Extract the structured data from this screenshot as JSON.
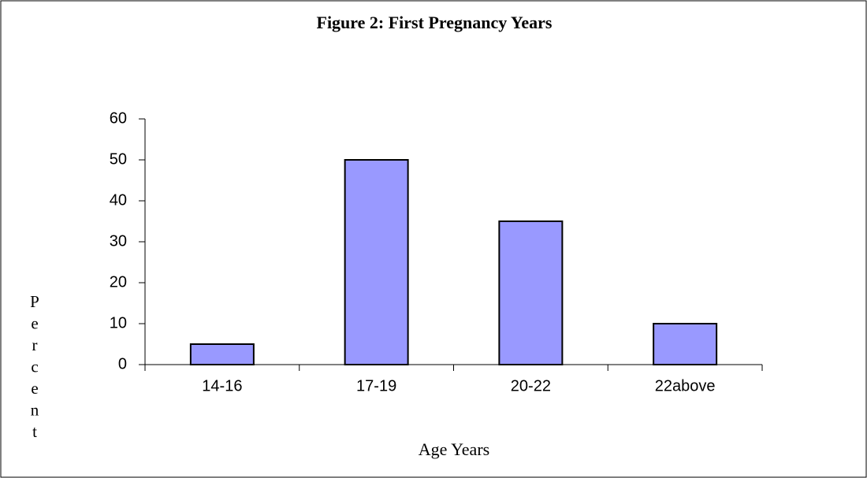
{
  "chart_data": {
    "type": "bar",
    "title": "Figure 2:  First Pregnancy Years",
    "x_label": "Age Years",
    "y_label": "Percent",
    "categories": [
      "14-16",
      "17-19",
      "20-22",
      "22above"
    ],
    "values": [
      5,
      50,
      35,
      10
    ],
    "color": "#9999ff",
    "ylim": [
      0,
      60
    ],
    "yticks": [
      0,
      10,
      20,
      30,
      40,
      50,
      60
    ],
    "grid": false
  }
}
